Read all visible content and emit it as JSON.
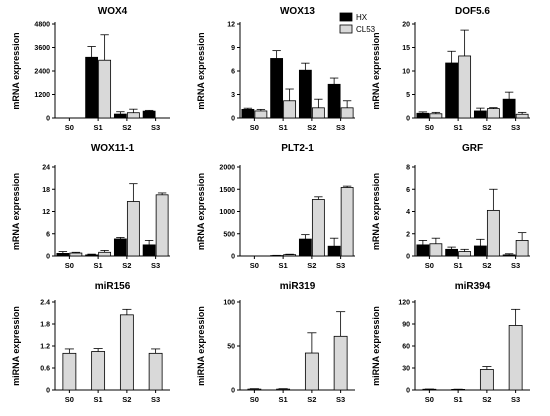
{
  "chart_data": [
    {
      "type": "bar",
      "title": "WOX4",
      "ylabel": "mRNA expression",
      "ylim": [
        0,
        4800
      ],
      "yticks": [
        "0",
        "1200",
        "2400",
        "3600",
        "4800"
      ],
      "categories": [
        "S0",
        "S1",
        "S2",
        "S3"
      ],
      "series": [
        {
          "name": "HX",
          "color": "#000000",
          "values": [
            0,
            3100,
            200,
            350
          ],
          "errors": [
            0,
            550,
            120,
            40
          ]
        },
        {
          "name": "CL53",
          "color": "#d9d9d9",
          "values": [
            0,
            2950,
            270,
            0
          ],
          "errors": [
            0,
            1300,
            180,
            0
          ]
        }
      ]
    },
    {
      "type": "bar",
      "title": "WOX13",
      "ylabel": "mRNA expression",
      "ylim": [
        0,
        12
      ],
      "yticks": [
        "0",
        "3",
        "6",
        "9",
        "12"
      ],
      "categories": [
        "S0",
        "S1",
        "S2",
        "S3"
      ],
      "series": [
        {
          "name": "HX",
          "color": "#000000",
          "values": [
            1.1,
            7.6,
            6.1,
            4.3
          ],
          "errors": [
            0.15,
            1.0,
            0.9,
            0.8
          ]
        },
        {
          "name": "CL53",
          "color": "#d9d9d9",
          "values": [
            0.9,
            2.2,
            1.3,
            1.3
          ],
          "errors": [
            0.2,
            1.5,
            1.1,
            0.9
          ]
        }
      ]
    },
    {
      "type": "bar",
      "title": "DOF5.6",
      "ylabel": "mRNA expression",
      "ylim": [
        0,
        20
      ],
      "yticks": [
        "0",
        "5",
        "10",
        "15",
        "20"
      ],
      "categories": [
        "S0",
        "S1",
        "S2",
        "S3"
      ],
      "series": [
        {
          "name": "HX",
          "color": "#000000",
          "values": [
            1.0,
            11.7,
            1.5,
            4.0
          ],
          "errors": [
            0.3,
            2.5,
            0.6,
            1.5
          ]
        },
        {
          "name": "CL53",
          "color": "#d9d9d9",
          "values": [
            0.9,
            13.2,
            2.0,
            0.8
          ],
          "errors": [
            0.3,
            5.5,
            0.2,
            0.4
          ]
        }
      ]
    },
    {
      "type": "bar",
      "title": "WOX11-1",
      "ylabel": "mRNA expression",
      "ylim": [
        0,
        24
      ],
      "yticks": [
        "0",
        "6",
        "12",
        "18",
        "24"
      ],
      "categories": [
        "S0",
        "S1",
        "S2",
        "S3"
      ],
      "series": [
        {
          "name": "HX",
          "color": "#000000",
          "values": [
            0.7,
            0.3,
            4.6,
            3.0
          ],
          "errors": [
            0.5,
            0.2,
            0.4,
            1.2
          ]
        },
        {
          "name": "CL53",
          "color": "#d9d9d9",
          "values": [
            0.8,
            1.0,
            14.7,
            16.5
          ],
          "errors": [
            0.2,
            0.5,
            4.8,
            0.5
          ]
        }
      ]
    },
    {
      "type": "bar",
      "title": "PLT2-1",
      "ylabel": "mRNA expression",
      "ylim": [
        0,
        2000
      ],
      "yticks": [
        "0",
        "500",
        "1000",
        "1500",
        "2000"
      ],
      "categories": [
        "S0",
        "S1",
        "S2",
        "S3"
      ],
      "series": [
        {
          "name": "HX",
          "color": "#000000",
          "values": [
            0,
            10,
            380,
            220
          ],
          "errors": [
            0,
            5,
            100,
            180
          ]
        },
        {
          "name": "CL53",
          "color": "#d9d9d9",
          "values": [
            0,
            30,
            1270,
            1540
          ],
          "errors": [
            0,
            10,
            60,
            30
          ]
        }
      ]
    },
    {
      "type": "bar",
      "title": "GRF",
      "ylabel": "mRNA expression",
      "ylim": [
        0,
        8
      ],
      "yticks": [
        "0",
        "2",
        "4",
        "6",
        "8"
      ],
      "categories": [
        "S0",
        "S1",
        "S2",
        "S3"
      ],
      "series": [
        {
          "name": "HX",
          "color": "#000000",
          "values": [
            1.0,
            0.6,
            0.9,
            0.1
          ],
          "errors": [
            0.4,
            0.2,
            0.6,
            0.1
          ]
        },
        {
          "name": "CL53",
          "color": "#d9d9d9",
          "values": [
            1.1,
            0.4,
            4.1,
            1.4
          ],
          "errors": [
            0.5,
            0.2,
            1.9,
            0.7
          ]
        }
      ]
    },
    {
      "type": "bar",
      "title": "miR156",
      "ylabel": "miRNA expression",
      "ylim": [
        0,
        2.4
      ],
      "yticks": [
        "0",
        "0.6",
        "1.2",
        "1.8",
        "2.4"
      ],
      "categories": [
        "S0",
        "S1",
        "S2",
        "S3"
      ],
      "series": [
        {
          "color": "#d9d9d9",
          "values": [
            1.0,
            1.05,
            2.05,
            1.0
          ],
          "errors": [
            0.12,
            0.08,
            0.15,
            0.12
          ]
        }
      ]
    },
    {
      "type": "bar",
      "title": "miR319",
      "ylabel": "miRNA expression",
      "ylim": [
        0,
        100
      ],
      "yticks": [
        "0",
        "50",
        "100"
      ],
      "categories": [
        "S0",
        "S1",
        "S2",
        "S3"
      ],
      "series": [
        {
          "color": "#d9d9d9",
          "values": [
            1.0,
            1.0,
            42,
            61
          ],
          "errors": [
            0.5,
            0.5,
            23,
            28
          ]
        }
      ]
    },
    {
      "type": "bar",
      "title": "miR394",
      "ylabel": "miRNA expression",
      "ylim": [
        0,
        120
      ],
      "yticks": [
        "0",
        "30",
        "60",
        "90",
        "120"
      ],
      "categories": [
        "S0",
        "S1",
        "S2",
        "S3"
      ],
      "series": [
        {
          "color": "#d9d9d9",
          "values": [
            1.0,
            0.8,
            28,
            88
          ],
          "errors": [
            0.3,
            0.3,
            4,
            22
          ]
        }
      ]
    }
  ],
  "legend": {
    "items": [
      {
        "label": "HX",
        "color": "#000000"
      },
      {
        "label": "CL53",
        "color": "#d9d9d9"
      }
    ]
  }
}
